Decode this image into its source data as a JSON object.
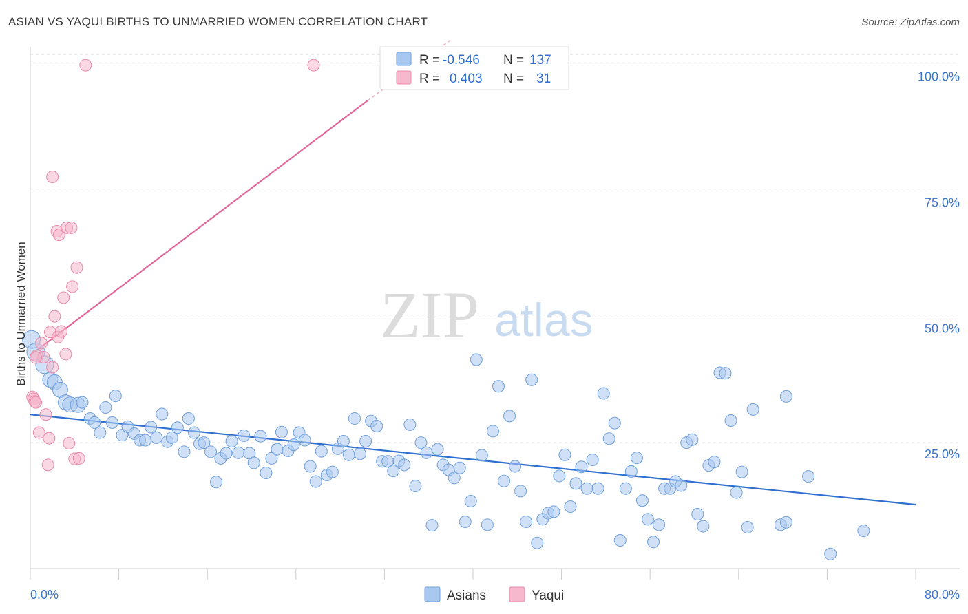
{
  "header": {
    "title": "ASIAN VS YAQUI BIRTHS TO UNMARRIED WOMEN CORRELATION CHART",
    "source": "Source: ZipAtlas.com"
  },
  "watermark": {
    "zip": "ZIP",
    "atlas": "atlas"
  },
  "legend": {
    "rows": [
      {
        "r_label": "R =",
        "r_value": "-0.546",
        "n_label": "N =",
        "n_value": "137",
        "color": "#a9c8f0"
      },
      {
        "r_label": "R =",
        "r_value": "0.403",
        "n_label": "N =",
        "n_value": "31",
        "color": "#f6b8cc"
      }
    ]
  },
  "bottom_legend": [
    {
      "label": "Asians",
      "color": "#a9c8f0"
    },
    {
      "label": "Yaqui",
      "color": "#f6b8cc"
    }
  ],
  "chart_data": {
    "type": "scatter",
    "title": "ASIAN VS YAQUI BIRTHS TO UNMARRIED WOMEN CORRELATION CHART",
    "xlabel": "",
    "ylabel": "Births to Unmarried Women",
    "xlim": [
      0,
      80
    ],
    "ylim": [
      0,
      102
    ],
    "x_tick_labels": [
      "0.0%",
      "80.0%"
    ],
    "y_ticks": [
      25,
      50,
      75,
      100
    ],
    "y_tick_labels": [
      "25.0%",
      "50.0%",
      "75.0%",
      "100.0%"
    ],
    "grid": "horizontal dashed",
    "legend_position": "top-center",
    "series": [
      {
        "name": "Asians",
        "color": "#a9c8f0",
        "stroke": "#6f9fdc",
        "line_color": "#2f6fd0",
        "trend": {
          "x": [
            0,
            80
          ],
          "y": [
            30.6,
            12.7
          ]
        },
        "points": [
          [
            0.1,
            45.5
          ],
          [
            0.5,
            43
          ],
          [
            1.3,
            40.5
          ],
          [
            1.8,
            37.5
          ],
          [
            2.2,
            37
          ],
          [
            2.7,
            35.5
          ],
          [
            3.2,
            33
          ],
          [
            3.6,
            32.6
          ],
          [
            4.3,
            32.5
          ],
          [
            4.7,
            33
          ],
          [
            5.4,
            29.8
          ],
          [
            5.8,
            29
          ],
          [
            6.3,
            27
          ],
          [
            6.8,
            32
          ],
          [
            7.7,
            34.3
          ],
          [
            7.4,
            29
          ],
          [
            8.3,
            26.5
          ],
          [
            8.8,
            28.2
          ],
          [
            9.4,
            26.8
          ],
          [
            9.9,
            25.5
          ],
          [
            10.4,
            25.5
          ],
          [
            10.9,
            28.1
          ],
          [
            11.4,
            26
          ],
          [
            11.9,
            30.7
          ],
          [
            12.4,
            25.2
          ],
          [
            12.8,
            26
          ],
          [
            13.3,
            28
          ],
          [
            13.9,
            23.2
          ],
          [
            14.3,
            29.8
          ],
          [
            14.8,
            27
          ],
          [
            15.3,
            24.8
          ],
          [
            15.7,
            25
          ],
          [
            16.3,
            23.2
          ],
          [
            16.8,
            17.2
          ],
          [
            17.2,
            21.9
          ],
          [
            17.7,
            22.9
          ],
          [
            18.2,
            25.3
          ],
          [
            18.8,
            23
          ],
          [
            19.3,
            26.4
          ],
          [
            19.8,
            22.9
          ],
          [
            20.2,
            21
          ],
          [
            20.8,
            26.3
          ],
          [
            21.3,
            19
          ],
          [
            21.8,
            21.9
          ],
          [
            22.3,
            23.7
          ],
          [
            22.7,
            27.1
          ],
          [
            23.3,
            23.4
          ],
          [
            23.8,
            24.6
          ],
          [
            24.3,
            27
          ],
          [
            24.8,
            25.5
          ],
          [
            25.3,
            20.3
          ],
          [
            25.8,
            17.3
          ],
          [
            26.3,
            23.3
          ],
          [
            26.8,
            18.6
          ],
          [
            27.3,
            19.2
          ],
          [
            27.8,
            23.8
          ],
          [
            28.3,
            25.3
          ],
          [
            28.8,
            22.6
          ],
          [
            29.3,
            29.8
          ],
          [
            29.8,
            22.8
          ],
          [
            30.3,
            25.3
          ],
          [
            30.8,
            29.3
          ],
          [
            31.3,
            28.3
          ],
          [
            31.8,
            21.3
          ],
          [
            32.3,
            21.3
          ],
          [
            32.8,
            19.4
          ],
          [
            33.3,
            21.4
          ],
          [
            33.8,
            20.6
          ],
          [
            34.3,
            28.6
          ],
          [
            34.8,
            16.4
          ],
          [
            35.3,
            25
          ],
          [
            35.8,
            23
          ],
          [
            36.3,
            8.6
          ],
          [
            36.8,
            23.7
          ],
          [
            37.3,
            20.6
          ],
          [
            37.8,
            19.6
          ],
          [
            38.3,
            18
          ],
          [
            38.8,
            20
          ],
          [
            39.3,
            9.3
          ],
          [
            39.8,
            13.4
          ],
          [
            40.3,
            41.5
          ],
          [
            40.8,
            22.5
          ],
          [
            41.3,
            8.7
          ],
          [
            41.8,
            27.3
          ],
          [
            42.3,
            36.2
          ],
          [
            42.8,
            17.4
          ],
          [
            43.3,
            30.3
          ],
          [
            43.8,
            20.3
          ],
          [
            44.3,
            15.4
          ],
          [
            44.8,
            9.3
          ],
          [
            45.3,
            37.5
          ],
          [
            45.8,
            5.1
          ],
          [
            46.3,
            9.8
          ],
          [
            46.8,
            11
          ],
          [
            47.3,
            11.3
          ],
          [
            47.8,
            18.4
          ],
          [
            48.3,
            22.6
          ],
          [
            48.8,
            12.3
          ],
          [
            49.3,
            16.9
          ],
          [
            49.8,
            20.2
          ],
          [
            50.3,
            15.9
          ],
          [
            50.8,
            21.6
          ],
          [
            51.3,
            15.9
          ],
          [
            51.8,
            34.8
          ],
          [
            52.3,
            25.8
          ],
          [
            52.8,
            28.9
          ],
          [
            53.3,
            5.6
          ],
          [
            53.8,
            15.9
          ],
          [
            54.3,
            19.3
          ],
          [
            54.8,
            22.0
          ],
          [
            55.3,
            13.5
          ],
          [
            55.8,
            9.8
          ],
          [
            56.3,
            5.3
          ],
          [
            56.8,
            8.7
          ],
          [
            57.3,
            15.9
          ],
          [
            57.8,
            15.9
          ],
          [
            58.3,
            17.3
          ],
          [
            58.8,
            16.5
          ],
          [
            59.3,
            25
          ],
          [
            59.8,
            25.6
          ],
          [
            60.3,
            10.8
          ],
          [
            60.8,
            8.4
          ],
          [
            61.3,
            20.5
          ],
          [
            61.8,
            21.2
          ],
          [
            62.3,
            38.9
          ],
          [
            62.8,
            38.8
          ],
          [
            63.3,
            29.4
          ],
          [
            63.8,
            15.1
          ],
          [
            64.3,
            19.2
          ],
          [
            64.8,
            8.2
          ],
          [
            65.3,
            31.6
          ],
          [
            67.8,
            8.7
          ],
          [
            68.3,
            9.2
          ],
          [
            68.3,
            34.2
          ],
          [
            70.3,
            18.3
          ],
          [
            72.3,
            2.9
          ],
          [
            75.3,
            7.5
          ]
        ]
      },
      {
        "name": "Yaqui",
        "color": "#f6b8cc",
        "stroke": "#e889a8",
        "line_color": "#e0679a",
        "trend": {
          "x": [
            0,
            30.5
          ],
          "y": [
            42.4,
            93
          ]
        },
        "trend_dashed": {
          "x": [
            30.5,
            38
          ],
          "y": [
            93,
            105
          ]
        },
        "points": [
          [
            0.2,
            34.1
          ],
          [
            0.3,
            33.7
          ],
          [
            0.4,
            33.2
          ],
          [
            0.5,
            33
          ],
          [
            0.6,
            42.3
          ],
          [
            0.8,
            27
          ],
          [
            1.0,
            44.8
          ],
          [
            1.2,
            42
          ],
          [
            1.4,
            30.6
          ],
          [
            1.6,
            20.6
          ],
          [
            1.8,
            47
          ],
          [
            2.0,
            40
          ],
          [
            2.0,
            77.8
          ],
          [
            2.2,
            50.1
          ],
          [
            2.4,
            67
          ],
          [
            2.5,
            46
          ],
          [
            2.6,
            66.3
          ],
          [
            2.8,
            47.1
          ],
          [
            3.0,
            53.8
          ],
          [
            3.2,
            42.6
          ],
          [
            3.3,
            67.7
          ],
          [
            3.5,
            24.9
          ],
          [
            3.7,
            67.7
          ],
          [
            3.8,
            56
          ],
          [
            4.0,
            21.8
          ],
          [
            4.2,
            59.8
          ],
          [
            4.4,
            21.9
          ],
          [
            5.0,
            100
          ],
          [
            25.6,
            100
          ],
          [
            0.5,
            41.9
          ],
          [
            1.7,
            25.9
          ]
        ]
      }
    ]
  }
}
